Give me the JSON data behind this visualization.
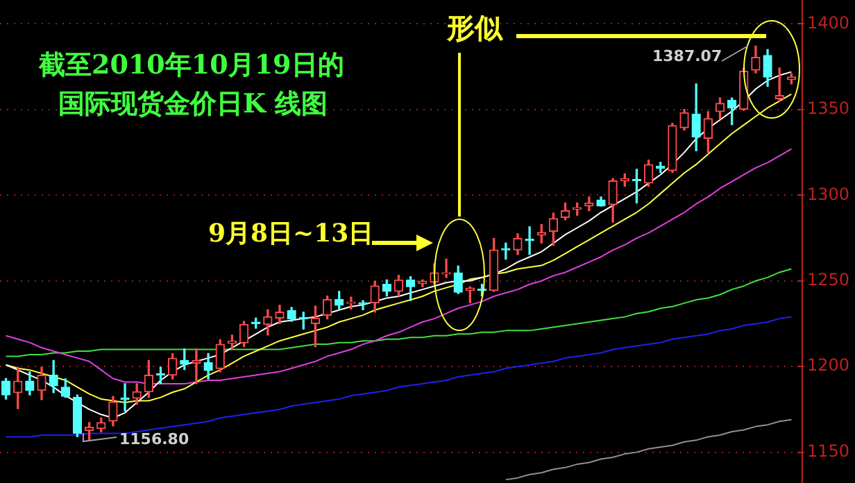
{
  "chart_data": {
    "type": "candlestick",
    "legend": false,
    "grid": "y",
    "marker": "none",
    "line_style": "solid",
    "annotations": [
      "截至2010年10月19日的",
      "国际现货金价日K 线图",
      "9月8日~13日",
      "形似",
      "1156.80",
      "1387.07"
    ],
    "categories": [
      null,
      null,
      null,
      null,
      null,
      null,
      null,
      null,
      null,
      null,
      null,
      null,
      null,
      null,
      null,
      null,
      null,
      null,
      null,
      null,
      null,
      null,
      null,
      null,
      null,
      null,
      null,
      null,
      null,
      null,
      null,
      null,
      null,
      null,
      null,
      null,
      null,
      null,
      null,
      null,
      null,
      null,
      null,
      null,
      null,
      null,
      null,
      null,
      null,
      null,
      null,
      null,
      null,
      null,
      null,
      null,
      null,
      null,
      null,
      null,
      null,
      null,
      null,
      null,
      null,
      null,
      null
    ],
    "colors": [
      "#54ffff",
      "#ff4a4a",
      "#54ffff",
      "#ff4a4a",
      "#54ffff",
      "#54ffff",
      "#54ffff",
      "#ff4a4a",
      "#ff4a4a",
      "#ff4a4a",
      "#54ffff",
      "#ff4a4a",
      "#ff4a4a",
      "#54ffff",
      "#ff4a4a",
      "#54ffff",
      "#ff4a4a",
      "#54ffff",
      "#ff4a4a",
      "#ff4a4a",
      "#ff4a4a",
      "#54ffff",
      "#ff4a4a",
      "#ff4a4a",
      "#54ffff",
      "#54ffff",
      "#ff4a4a",
      "#ff4a4a",
      "#54ffff",
      "#ff4a4a",
      "#54ffff",
      "#ff4a4a",
      "#54ffff",
      "#ff4a4a",
      "#54ffff",
      "#ff4a4a",
      "#ff4a4a",
      "#ff4a4a",
      "#54ffff",
      "#ff4a4a",
      "#54ffff",
      "#ff4a4a",
      "#54ffff",
      "#ff4a4a",
      "#54ffff",
      "#ff4a4a",
      "#ff4a4a",
      "#ff4a4a",
      "#ff4a4a",
      "#ff4a4a",
      "#54ffff",
      "#ff4a4a",
      "#ff4a4a",
      "#54ffff",
      "#ff4a4a",
      "#54ffff",
      "#ff4a4a",
      "#ff4a4a",
      "#54ffff",
      "#ff4a4a",
      "#ff4a4a",
      "#54ffff",
      "#ff4a4a",
      "#ff4a4a",
      "#54ffff",
      "#ff4a4a",
      "#ff4a4a"
    ],
    "ohlc": [
      [
        1191.5,
        1193,
        1181,
        1183.4
      ],
      [
        1184.8,
        1199.6,
        1175.4,
        1191.5
      ],
      [
        1191.5,
        1196.9,
        1183.4,
        1186.1
      ],
      [
        1186.1,
        1199.6,
        1180.7,
        1195
      ],
      [
        1195,
        1203.6,
        1184.8,
        1188.8
      ],
      [
        1188,
        1192.8,
        1182,
        1182.6
      ],
      [
        1182,
        1183.4,
        1159,
        1161.1
      ],
      [
        1162.7,
        1167.3,
        1156.8,
        1164.6
      ],
      [
        1163.8,
        1170,
        1161.9,
        1167.3
      ],
      [
        1168.1,
        1182.6,
        1165.4,
        1179.4
      ],
      [
        1181.6,
        1190,
        1174,
        1180.7
      ],
      [
        1181.5,
        1190,
        1178,
        1185.3
      ],
      [
        1185.3,
        1203.6,
        1182,
        1195
      ],
      [
        1195.5,
        1199.6,
        1190,
        1195
      ],
      [
        1195,
        1207.6,
        1192.8,
        1204.9
      ],
      [
        1203.6,
        1210.3,
        1198.2,
        1201.4
      ],
      [
        1202,
        1210.3,
        1190,
        1203.6
      ],
      [
        1202.2,
        1207.6,
        1192.8,
        1197.7
      ],
      [
        1198.8,
        1215.7,
        1196.9,
        1213
      ],
      [
        1213.5,
        1218.4,
        1210.3,
        1214.8
      ],
      [
        1213.8,
        1226.4,
        1211.6,
        1224.6
      ],
      [
        1225.6,
        1228.3,
        1222.4,
        1225.1
      ],
      [
        1224.6,
        1233.2,
        1218.4,
        1229.1
      ],
      [
        1228.3,
        1235.8,
        1225.1,
        1231.8
      ],
      [
        1232.6,
        1234.5,
        1226.4,
        1227.8
      ],
      [
        1228.3,
        1231.8,
        1221.9,
        1227.8
      ],
      [
        1225.1,
        1235.3,
        1211.6,
        1228.3
      ],
      [
        1229.9,
        1241.2,
        1227.8,
        1239.1
      ],
      [
        1239.1,
        1243.9,
        1233.2,
        1235.8
      ],
      [
        1236.9,
        1240.5,
        1233.5,
        1237.6
      ],
      [
        1237,
        1238.5,
        1233.2,
        1236.5
      ],
      [
        1237.2,
        1249.8,
        1231.8,
        1247.1
      ],
      [
        1248,
        1250.6,
        1241.2,
        1243.9
      ],
      [
        1243.9,
        1253.3,
        1241.2,
        1250.6
      ],
      [
        1250.6,
        1252.5,
        1238.5,
        1246.6
      ],
      [
        1248.5,
        1250.6,
        1246.6,
        1249.8
      ],
      [
        1249.3,
        1260,
        1248,
        1254.7
      ],
      [
        1254,
        1262.7,
        1252,
        1254.7
      ],
      [
        1254.7,
        1258.7,
        1242.6,
        1243.4
      ],
      [
        1244.4,
        1246.6,
        1237.2,
        1245.8
      ],
      [
        1244.5,
        1248,
        1241.2,
        1244.4
      ],
      [
        1244.4,
        1274.8,
        1243.9,
        1268.1
      ],
      [
        1268.6,
        1272.1,
        1262.7,
        1268.1
      ],
      [
        1268.1,
        1277.5,
        1265.4,
        1274.8
      ],
      [
        1273.6,
        1281.6,
        1265.4,
        1273.5
      ],
      [
        1276.7,
        1282.9,
        1272.1,
        1278.3
      ],
      [
        1278.9,
        1289.6,
        1270.8,
        1286.4
      ],
      [
        1287,
        1295.5,
        1285.6,
        1291
      ],
      [
        1291.8,
        1295.5,
        1288.3,
        1292.8
      ],
      [
        1293.7,
        1299,
        1291,
        1295.5
      ],
      [
        1297.2,
        1299,
        1293.7,
        1293.7
      ],
      [
        1294.5,
        1309.8,
        1284.3,
        1308.4
      ],
      [
        1308.4,
        1312.5,
        1305.2,
        1309.8
      ],
      [
        1308.6,
        1315.2,
        1295.5,
        1308.4
      ],
      [
        1307.1,
        1320.5,
        1305.2,
        1317.9
      ],
      [
        1317,
        1319.2,
        1313.3,
        1315.7
      ],
      [
        1314.4,
        1342,
        1313.3,
        1340.7
      ],
      [
        1339.4,
        1350.1,
        1338,
        1348.2
      ],
      [
        1347.4,
        1365,
        1325.9,
        1334
      ],
      [
        1333.2,
        1348.8,
        1325.1,
        1344.7
      ],
      [
        1348.8,
        1356.8,
        1344.7,
        1353.6
      ],
      [
        1355.5,
        1356.8,
        1341.2,
        1350.9
      ],
      [
        1350.2,
        1374.3,
        1349.5,
        1372.4
      ],
      [
        1373,
        1387.07,
        1371.4,
        1380.5
      ],
      [
        1381.6,
        1385,
        1363.6,
        1369
      ],
      [
        1356.3,
        1374.3,
        1355,
        1358.2
      ],
      [
        1367.6,
        1371,
        1365,
        1369
      ]
    ],
    "series": [
      {
        "type": "line",
        "color": "#ffffff",
        "values": [
          1201,
          1198,
          1195,
          1192,
          1188,
          1183,
          1179,
          1175,
          1172,
          1170,
          1173,
          1179,
          1185,
          1192,
          1197,
          1201,
          1203,
          1205,
          1207,
          1211,
          1215,
          1219,
          1223,
          1226,
          1227,
          1228,
          1229,
          1231,
          1233,
          1235,
          1236,
          1238,
          1240,
          1241,
          1243,
          1245,
          1247,
          1249,
          1250,
          1250,
          1252,
          1254,
          1257,
          1261,
          1264,
          1267,
          1272,
          1277,
          1281,
          1285,
          1290,
          1294,
          1298,
          1302,
          1307,
          1312,
          1318,
          1325,
          1333,
          1339,
          1344,
          1349,
          1355,
          1362,
          1367,
          1370,
          1372
        ]
      },
      {
        "type": "line",
        "color": "#ffff40",
        "values": [
          1201,
          1199,
          1198,
          1196,
          1194,
          1192,
          1188,
          1184,
          1181,
          1180,
          1179,
          1180,
          1180,
          1182,
          1185,
          1187,
          1191,
          1195,
          1198,
          1202,
          1206,
          1209,
          1212,
          1215,
          1217,
          1219,
          1221,
          1223,
          1226,
          1228,
          1230,
          1233,
          1235,
          1237,
          1239,
          1241,
          1244,
          1246,
          1248,
          1251,
          1252,
          1254,
          1255,
          1257,
          1258,
          1259,
          1262,
          1266,
          1270,
          1274,
          1278,
          1282,
          1286,
          1290,
          1295,
          1301,
          1307,
          1313,
          1318,
          1324,
          1330,
          1336,
          1341,
          1346,
          1351,
          1355,
          1359
        ]
      },
      {
        "type": "line",
        "color": "#e040e0",
        "values": [
          1218,
          1216,
          1214,
          1211,
          1209,
          1207,
          1205,
          1203,
          1198,
          1193,
          1191,
          1191,
          1190,
          1190,
          1190,
          1190,
          1191,
          1192,
          1192,
          1193,
          1194,
          1195,
          1196,
          1197,
          1199,
          1201,
          1203,
          1206,
          1208,
          1210,
          1213,
          1215,
          1218,
          1220,
          1223,
          1226,
          1228,
          1231,
          1234,
          1236,
          1238,
          1241,
          1243,
          1245,
          1248,
          1250,
          1253,
          1255,
          1258,
          1261,
          1264,
          1268,
          1271,
          1275,
          1278,
          1282,
          1286,
          1290,
          1295,
          1299,
          1304,
          1308,
          1312,
          1316,
          1319,
          1323,
          1327
        ]
      },
      {
        "type": "line",
        "color": "#40e040",
        "values": [
          1206,
          1206,
          1207,
          1207,
          1208,
          1208,
          1209,
          1209,
          1210,
          1210,
          1210,
          1210,
          1210,
          1210,
          1210,
          1210,
          1210,
          1210,
          1210,
          1210,
          1210,
          1210,
          1210,
          1210,
          1211,
          1212,
          1213,
          1213,
          1214,
          1214,
          1215,
          1215,
          1216,
          1216,
          1217,
          1217,
          1218,
          1218,
          1219,
          1219,
          1220,
          1220,
          1221,
          1221,
          1221,
          1222,
          1223,
          1224,
          1225,
          1226,
          1227,
          1228,
          1229,
          1231,
          1232,
          1234,
          1235,
          1237,
          1239,
          1240,
          1242,
          1245,
          1247,
          1250,
          1252,
          1255,
          1257
        ]
      },
      {
        "type": "line",
        "color": "#2020f0",
        "values": [
          1159,
          1159,
          1159,
          1160,
          1160,
          1160,
          1160,
          1161,
          1161,
          1161,
          1161,
          1162,
          1163,
          1164,
          1165,
          1166,
          1167,
          1168,
          1170,
          1171,
          1172,
          1173,
          1174,
          1175,
          1177,
          1178,
          1179,
          1180,
          1181,
          1183,
          1184,
          1185,
          1186,
          1188,
          1189,
          1190,
          1191,
          1192,
          1194,
          1195,
          1196,
          1197,
          1199,
          1200,
          1201,
          1202,
          1203,
          1205,
          1206,
          1207,
          1208,
          1210,
          1211,
          1212,
          1213,
          1214,
          1216,
          1217,
          1218,
          1219,
          1221,
          1222,
          1224,
          1225,
          1226,
          1228,
          1229
        ]
      },
      {
        "type": "line",
        "color": "#909090",
        "values": [
          null,
          null,
          null,
          null,
          null,
          null,
          null,
          null,
          null,
          null,
          null,
          null,
          null,
          null,
          null,
          null,
          null,
          null,
          null,
          null,
          null,
          null,
          null,
          null,
          null,
          null,
          null,
          null,
          null,
          null,
          null,
          null,
          null,
          null,
          null,
          null,
          null,
          null,
          null,
          null,
          null,
          null,
          1134,
          1135,
          1137,
          1138,
          1140,
          1141,
          1143,
          1144,
          1146,
          1147,
          1149,
          1150,
          1152,
          1153,
          1154,
          1156,
          1157,
          1159,
          1160,
          1162,
          1163,
          1165,
          1166,
          1168,
          1169
        ]
      }
    ],
    "ylim": [
      1133,
      1413
    ],
    "yticks": [
      1150,
      1200,
      1250,
      1300,
      1350,
      1400
    ]
  }
}
